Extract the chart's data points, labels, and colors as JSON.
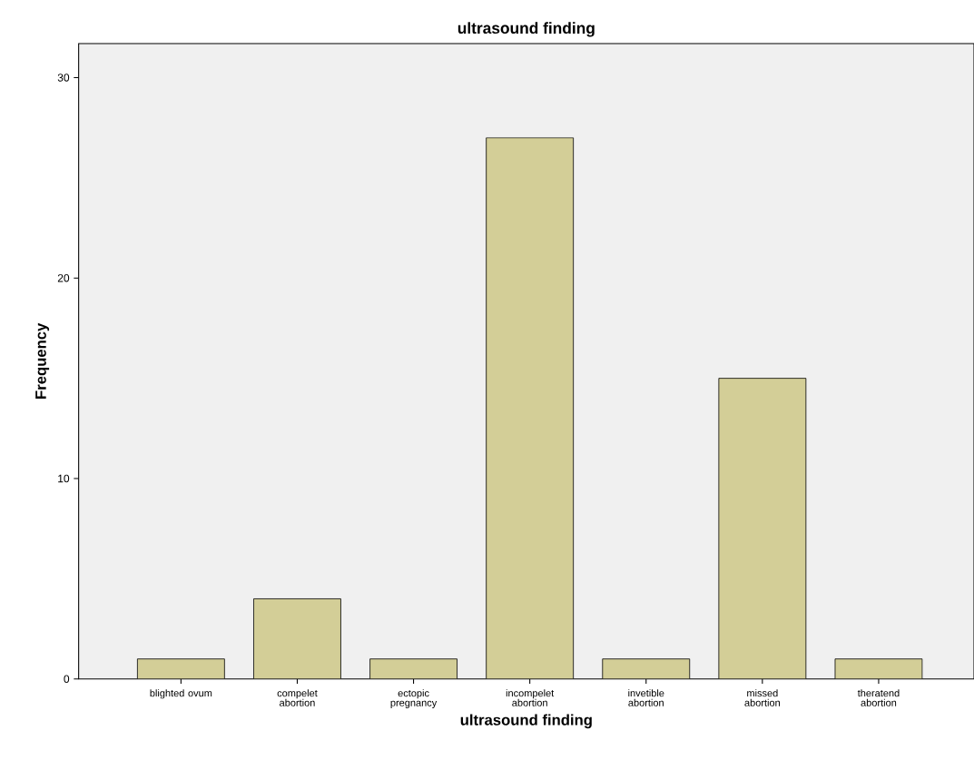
{
  "chart_data": {
    "type": "bar",
    "title": "ultrasound finding",
    "xlabel": "ultrasound finding",
    "ylabel": "Frequency",
    "categories": [
      "blighted ovum",
      "compelet abortion",
      "ectopic pregnancy",
      "incompelet abortion",
      "invetible abortion",
      "missed abortion",
      "theratend abortion"
    ],
    "values": [
      1,
      4,
      1,
      27,
      1,
      15,
      1
    ],
    "color": "#d3ce97",
    "ylim": [
      0,
      31.7
    ],
    "yticks": [
      0,
      10,
      20,
      30
    ],
    "grid": false
  }
}
